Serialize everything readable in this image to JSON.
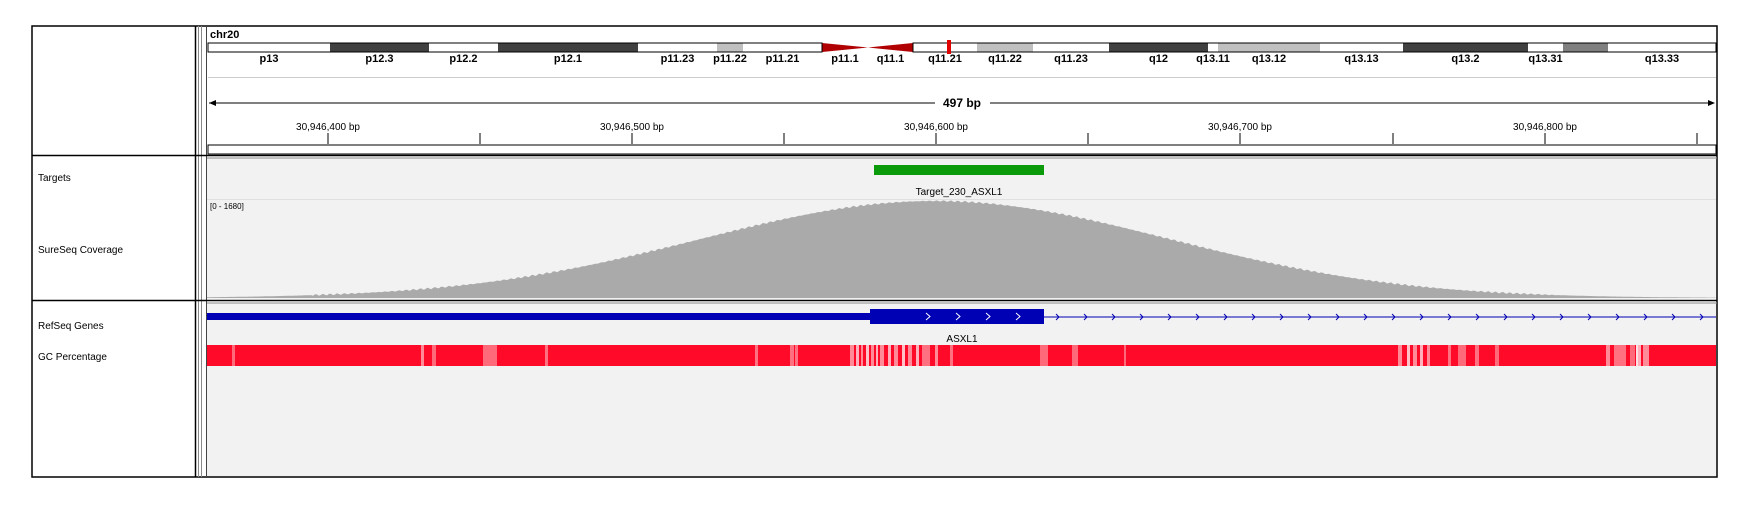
{
  "chromosome": "chr20",
  "ideogram": {
    "bands": [
      {
        "name": "p13",
        "stain": "gneg",
        "label": "p13"
      },
      {
        "name": "p12.3",
        "stain": "gpos75",
        "label": "p12.3"
      },
      {
        "name": "p12.2",
        "stain": "gneg",
        "label": "p12.2"
      },
      {
        "name": "p12.1",
        "stain": "gpos75",
        "label": "p12.1"
      },
      {
        "name": "p11.23",
        "stain": "gneg",
        "label": "p11.23"
      },
      {
        "name": "p11.22",
        "stain": "gpos25",
        "label": "p11.22"
      },
      {
        "name": "p11.21",
        "stain": "gneg",
        "label": "p11.21"
      },
      {
        "name": "p11.1",
        "stain": "acen-p",
        "label": "p11.1"
      },
      {
        "name": "q11.1",
        "stain": "acen-q",
        "label": "q11.1"
      },
      {
        "name": "q11.21",
        "stain": "gneg",
        "label": "q11.21"
      },
      {
        "name": "q11.22",
        "stain": "gpos25",
        "label": "q11.22"
      },
      {
        "name": "q11.23",
        "stain": "gneg",
        "label": "q11.23"
      },
      {
        "name": "q12",
        "stain": "gpos75",
        "label": "q12"
      },
      {
        "name": "q13.11",
        "stain": "gneg",
        "label": "q13.11"
      },
      {
        "name": "q13.12",
        "stain": "gpos25",
        "label": "q13.12"
      },
      {
        "name": "q13.13",
        "stain": "gneg",
        "label": "q13.13"
      },
      {
        "name": "q13.2",
        "stain": "gpos75",
        "label": "q13.2"
      },
      {
        "name": "q13.31",
        "stain": "gneg",
        "label": "q13.31"
      },
      {
        "name": "q13.32",
        "stain": "gpos50",
        "label": ""
      },
      {
        "name": "q13.33",
        "stain": "gneg",
        "label": "q13.33"
      }
    ]
  },
  "ruler": {
    "span_label": "497 bp",
    "ticks": [
      {
        "label": "30,946,400 bp"
      },
      {
        "label": "30,946,500 bp"
      },
      {
        "label": "30,946,600 bp"
      },
      {
        "label": "30,946,700 bp"
      },
      {
        "label": "30,946,800 bp"
      }
    ]
  },
  "tracks": {
    "targets": {
      "name": "Targets",
      "feature_label": "Target_230_ASXL1",
      "color": "#0a9a0a"
    },
    "coverage": {
      "name": "SureSeq Coverage",
      "range_label": "[0 - 1680]",
      "color": "#aaaaaa"
    },
    "refseq": {
      "name": "RefSeq Genes",
      "gene_label": "ASXL1",
      "color": "#0000b4"
    },
    "gc": {
      "name": "GC Percentage",
      "color": "#ff0a28"
    }
  }
}
